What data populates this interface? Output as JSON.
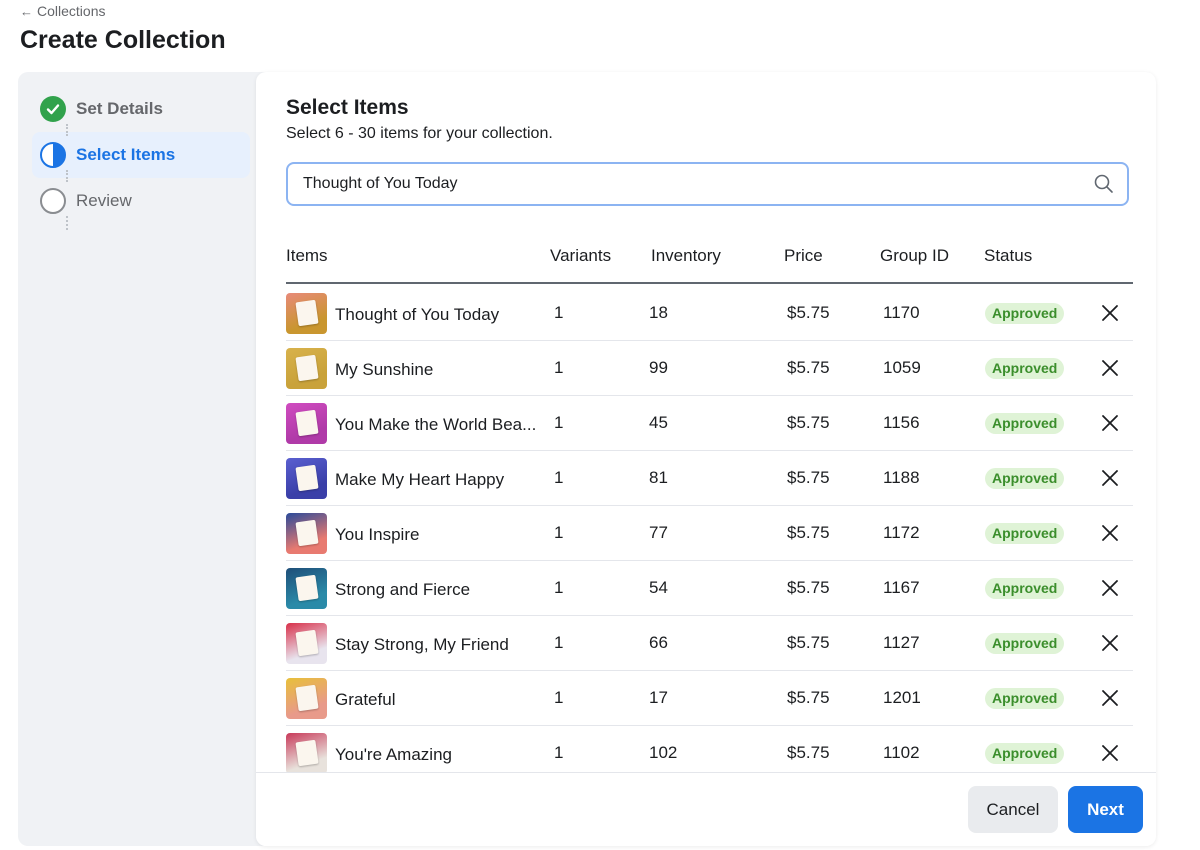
{
  "breadcrumb": {
    "arrow": "←",
    "label": "Collections"
  },
  "page": {
    "title": "Create Collection"
  },
  "steps": [
    {
      "label": "Set Details",
      "state": "done"
    },
    {
      "label": "Select Items",
      "state": "active"
    },
    {
      "label": "Review",
      "state": "pending"
    }
  ],
  "section": {
    "title": "Select Items",
    "subtitle": "Select 6 - 30 items for your collection."
  },
  "search": {
    "value": "Thought of You Today",
    "icon": "search-icon"
  },
  "table": {
    "headers": {
      "items": "Items",
      "variants": "Variants",
      "inventory": "Inventory",
      "price": "Price",
      "group_id": "Group ID",
      "status": "Status"
    },
    "rows": [
      {
        "name": "Thought of You Today",
        "variants": "1",
        "inventory": "18",
        "price": "$5.75",
        "group_id": "1170",
        "status": "Approved",
        "thumb_bg": "#c9962f",
        "thumb_top": "#e88a7a"
      },
      {
        "name": "My Sunshine",
        "variants": "1",
        "inventory": "99",
        "price": "$5.75",
        "group_id": "1059",
        "status": "Approved",
        "thumb_bg": "#c9a23a",
        "thumb_top": "#d8b24c"
      },
      {
        "name": "You Make the World Bea...",
        "variants": "1",
        "inventory": "45",
        "price": "$5.75",
        "group_id": "1156",
        "status": "Approved",
        "thumb_bg": "#b03aa8",
        "thumb_top": "#d04cc0"
      },
      {
        "name": "Make My Heart Happy",
        "variants": "1",
        "inventory": "81",
        "price": "$5.75",
        "group_id": "1188",
        "status": "Approved",
        "thumb_bg": "#3a3fa8",
        "thumb_top": "#5a5fd0"
      },
      {
        "name": "You Inspire",
        "variants": "1",
        "inventory": "77",
        "price": "$5.75",
        "group_id": "1172",
        "status": "Approved",
        "thumb_bg": "#e87a70",
        "thumb_top": "#2a4a9a"
      },
      {
        "name": "Strong and Fierce",
        "variants": "1",
        "inventory": "54",
        "price": "$5.75",
        "group_id": "1167",
        "status": "Approved",
        "thumb_bg": "#2a8aa8",
        "thumb_top": "#1f4e78"
      },
      {
        "name": "Stay Strong, My Friend",
        "variants": "1",
        "inventory": "66",
        "price": "$5.75",
        "group_id": "1127",
        "status": "Approved",
        "thumb_bg": "#e8e4ee",
        "thumb_top": "#d8304a"
      },
      {
        "name": "Grateful",
        "variants": "1",
        "inventory": "17",
        "price": "$5.75",
        "group_id": "1201",
        "status": "Approved",
        "thumb_bg": "#e89a8a",
        "thumb_top": "#e8c03a"
      },
      {
        "name": "You're Amazing",
        "variants": "1",
        "inventory": "102",
        "price": "$5.75",
        "group_id": "1102",
        "status": "Approved",
        "thumb_bg": "#e8e2dc",
        "thumb_top": "#c83a5a"
      }
    ]
  },
  "footer": {
    "cancel_label": "Cancel",
    "next_label": "Next"
  },
  "colors": {
    "accent": "#1b74e4",
    "success": "#31a24c",
    "badge_bg": "#dff3d6",
    "badge_text": "#3b8e2c"
  }
}
